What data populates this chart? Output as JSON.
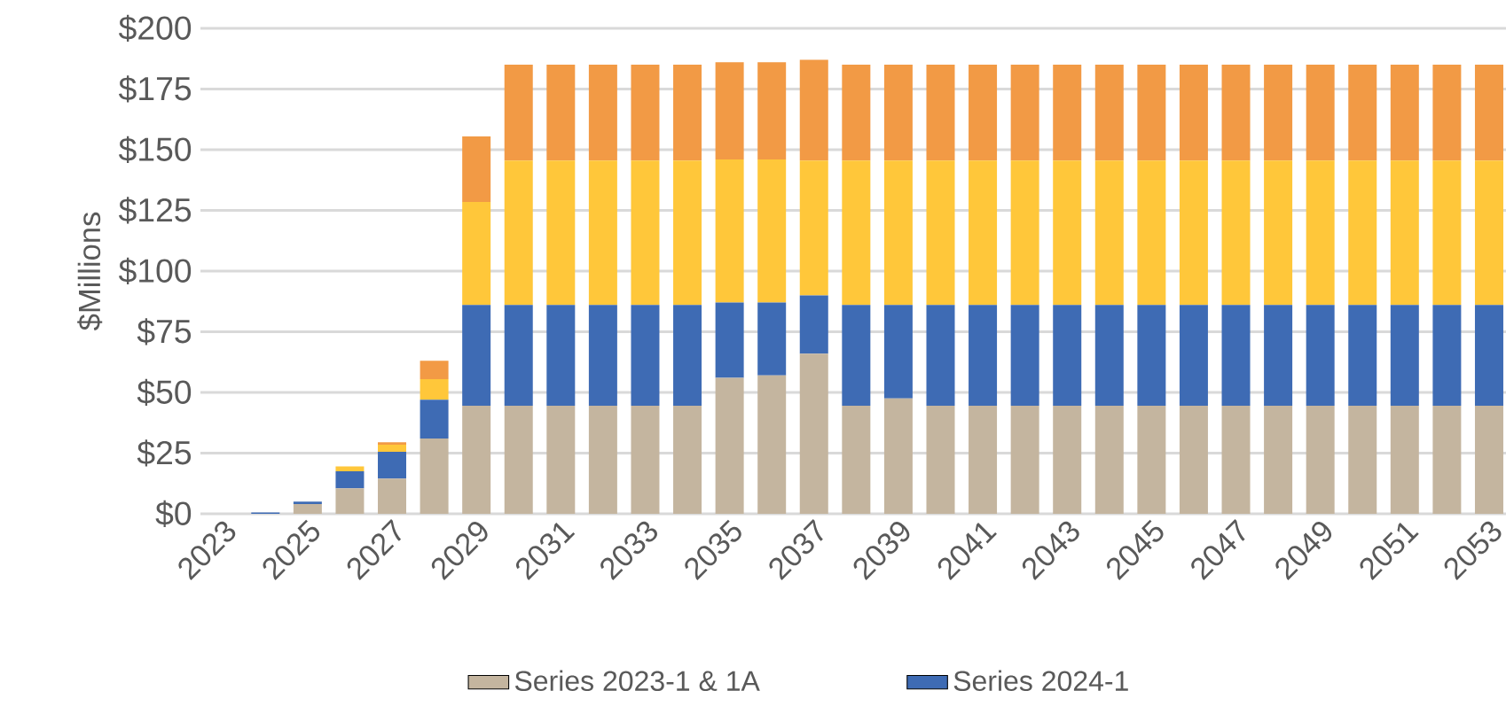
{
  "chart_data": {
    "type": "bar",
    "stacked": true,
    "ylabel": "$Millions",
    "categories": [
      "2023",
      null,
      "2025",
      null,
      "2027",
      null,
      "2029",
      null,
      "2031",
      null,
      "2033",
      null,
      "2035",
      null,
      "2037",
      null,
      "2039",
      null,
      "2041",
      null,
      "2043",
      null,
      "2045",
      null,
      "2047",
      null,
      "2049",
      null,
      "2051",
      null,
      "2053"
    ],
    "series": [
      {
        "name": "Series 2023-1 & 1A",
        "color": "#c4b59f",
        "values": [
          0,
          0,
          4,
          10.5,
          14.5,
          31,
          44.5,
          44.5,
          44.5,
          44.5,
          44.5,
          44.5,
          56,
          57,
          66,
          44.5,
          47.5,
          44.5,
          44.5,
          44.5,
          44.5,
          44.5,
          44.5,
          44.5,
          44.5,
          44.5,
          44.5,
          44.5,
          44.5,
          44.5,
          44.5
        ]
      },
      {
        "name": "Series 2024-1",
        "color": "#3e6bb4",
        "values": [
          0,
          0.5,
          1,
          7,
          11,
          16,
          41.5,
          41.5,
          41.5,
          41.5,
          41.5,
          41.5,
          31,
          30,
          24,
          41.5,
          38.5,
          41.5,
          41.5,
          41.5,
          41.5,
          41.5,
          41.5,
          41.5,
          41.5,
          41.5,
          41.5,
          41.5,
          41.5,
          41.5,
          41.5
        ]
      },
      {
        "color": "#ffc73a",
        "values": [
          0,
          0,
          0,
          2,
          3,
          8.5,
          42.5,
          59.5,
          59.5,
          59.5,
          59.5,
          59.5,
          59,
          59,
          55.5,
          59.5,
          59.5,
          59.5,
          59.5,
          59.5,
          59.5,
          59.5,
          59.5,
          59.5,
          59.5,
          59.5,
          59.5,
          59.5,
          59.5,
          59.5,
          59.5
        ]
      },
      {
        "color": "#f29a45",
        "values": [
          0,
          0,
          0,
          0,
          1,
          7.5,
          27,
          39.5,
          39.5,
          39.5,
          39.5,
          39.5,
          40,
          40,
          41.5,
          39.5,
          39.5,
          39.5,
          39.5,
          39.5,
          39.5,
          39.5,
          39.5,
          39.5,
          39.5,
          39.5,
          39.5,
          39.5,
          39.5,
          39.5,
          39.5
        ]
      }
    ],
    "ylim": [
      0,
      200
    ],
    "yticks": [
      {
        "value": 0,
        "label": "$0"
      },
      {
        "value": 25,
        "label": "$25"
      },
      {
        "value": 50,
        "label": "$50"
      },
      {
        "value": 75,
        "label": "$75"
      },
      {
        "value": 100,
        "label": "$100"
      },
      {
        "value": 125,
        "label": "$125"
      },
      {
        "value": 150,
        "label": "$150"
      },
      {
        "value": 175,
        "label": "$175"
      },
      {
        "value": 200,
        "label": "$200"
      }
    ],
    "grid": "y",
    "legend": "bottom"
  }
}
